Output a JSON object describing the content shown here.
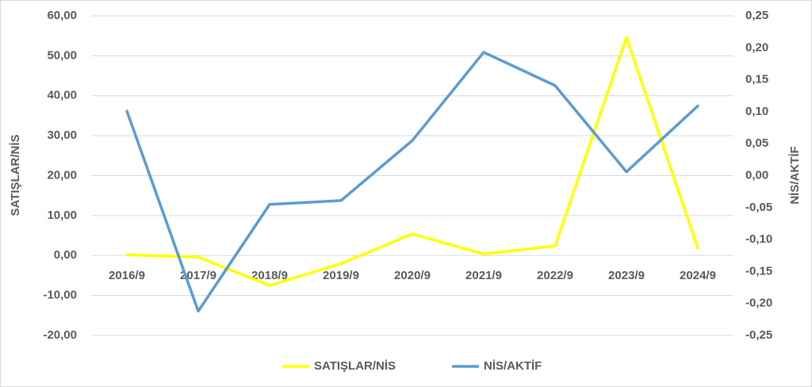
{
  "chart_data": {
    "type": "line",
    "categories": [
      "2016/9",
      "2017/9",
      "2018/9",
      "2019/9",
      "2020/9",
      "2021/9",
      "2022/9",
      "2023/9",
      "2024/9"
    ],
    "series": [
      {
        "name": "SATIŞLAR/NİS",
        "color": "#ffff00",
        "axis": "y",
        "values": [
          0.2,
          -0.4,
          -7.5,
          -2.0,
          5.4,
          0.4,
          2.4,
          54.6,
          1.8
        ]
      },
      {
        "name": "NİS/AKTİF",
        "color": "#5b9bd5",
        "axis": "y2",
        "values": [
          0.101,
          -0.212,
          -0.045,
          -0.039,
          0.055,
          0.193,
          0.141,
          0.006,
          0.109
        ]
      }
    ],
    "ylabel": "SATIŞLAR/NİS",
    "y2label": "NİS/AKTİF",
    "ylim": [
      -20,
      60
    ],
    "yticks": [
      {
        "value": -20,
        "label": "-20,00"
      },
      {
        "value": -10,
        "label": "-10,00"
      },
      {
        "value": 0,
        "label": "0,00"
      },
      {
        "value": 10,
        "label": "10,00"
      },
      {
        "value": 20,
        "label": "20,00"
      },
      {
        "value": 30,
        "label": "30,00"
      },
      {
        "value": 40,
        "label": "40,00"
      },
      {
        "value": 50,
        "label": "50,00"
      },
      {
        "value": 60,
        "label": "60,00"
      }
    ],
    "y2lim": [
      -0.25,
      0.25
    ],
    "y2ticks": [
      {
        "value": -0.25,
        "label": "-0,25"
      },
      {
        "value": -0.2,
        "label": "-0,20"
      },
      {
        "value": -0.15,
        "label": "-0,15"
      },
      {
        "value": -0.1,
        "label": "-0,10"
      },
      {
        "value": -0.05,
        "label": "-0,05"
      },
      {
        "value": 0,
        "label": "0,00"
      },
      {
        "value": 0.05,
        "label": "0,05"
      },
      {
        "value": 0.1,
        "label": "0,10"
      },
      {
        "value": 0.15,
        "label": "0,15"
      },
      {
        "value": 0.2,
        "label": "0,20"
      },
      {
        "value": 0.25,
        "label": "0,25"
      }
    ],
    "grid": true,
    "legend": "bottom"
  }
}
